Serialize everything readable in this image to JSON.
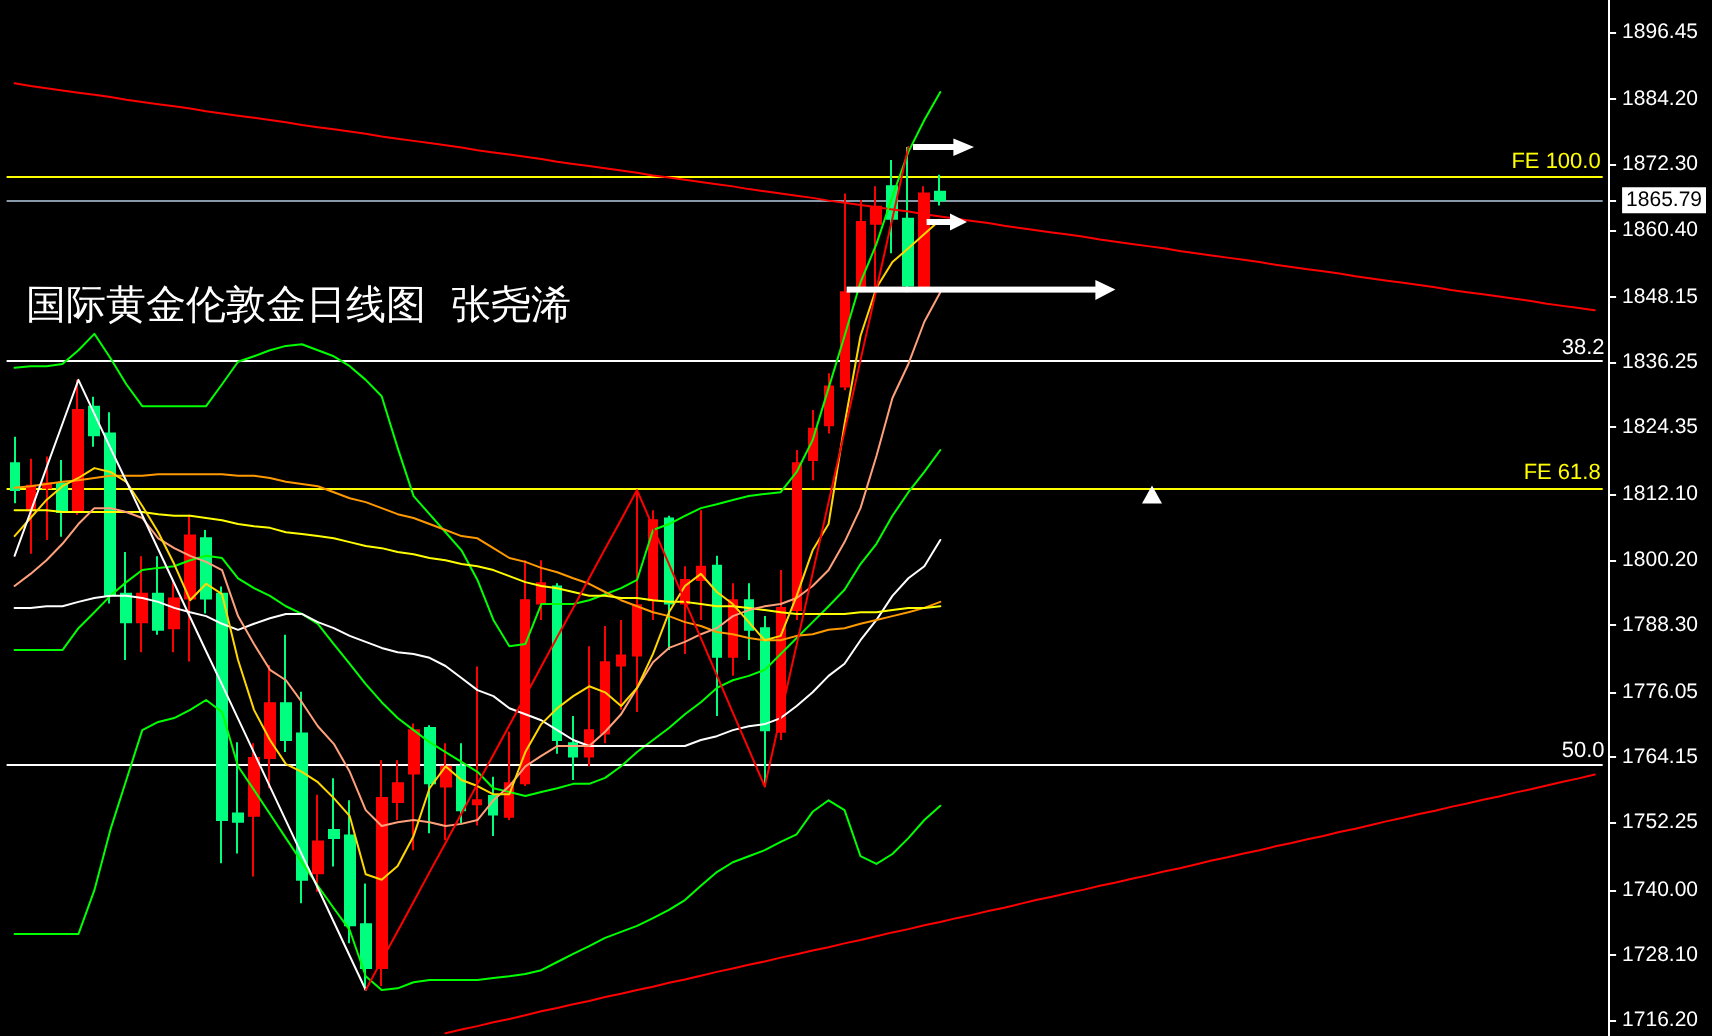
{
  "chart_data": {
    "type": "candlestick",
    "title": "国际黄金伦敦金日线图  张尧浠",
    "categories": [
      null,
      null,
      null,
      null,
      null,
      null,
      null,
      null,
      null,
      null,
      null,
      null,
      null,
      null,
      null,
      null,
      null,
      null,
      null,
      null,
      null,
      null,
      null,
      null,
      null,
      null,
      null,
      null,
      null,
      null,
      null,
      null,
      null,
      null,
      null,
      null,
      null,
      null,
      null,
      null,
      null,
      null,
      null,
      null,
      null,
      null,
      null,
      null,
      null,
      null,
      null,
      null,
      null,
      null,
      null,
      null,
      null,
      null,
      null,
      null,
      null,
      null,
      null,
      null,
      null,
      null,
      null,
      null,
      null,
      null,
      null,
      null,
      null,
      null,
      null,
      null,
      null,
      null,
      null,
      null,
      null,
      null,
      null,
      null,
      null,
      null,
      null,
      null,
      null,
      null,
      null,
      null,
      null,
      null,
      null,
      null,
      null,
      null,
      null,
      null
    ],
    "ohlc": [
      [
        1817.8,
        1822.6,
        1810.5,
        1812.9
      ],
      [
        1809.2,
        1818.6,
        1801.3,
        1813.7
      ],
      [
        1813.3,
        1819.0,
        1803.8,
        1814.1
      ],
      [
        1814.1,
        1818.4,
        1804.4,
        1808.9
      ],
      [
        1808.9,
        1833.0,
        1808.4,
        1827.5
      ],
      [
        1828.1,
        1829.9,
        1820.8,
        1822.9
      ],
      [
        1823.2,
        1827.1,
        1792.2,
        1793.7
      ],
      [
        1794.0,
        1801.6,
        1781.9,
        1788.8
      ],
      [
        1788.8,
        1800.8,
        1783.3,
        1794.0
      ],
      [
        1794.0,
        1800.8,
        1786.5,
        1787.4
      ],
      [
        1787.7,
        1796.5,
        1783.3,
        1793.1
      ],
      [
        1793.1,
        1808.4,
        1781.6,
        1804.6
      ],
      [
        1804.1,
        1805.6,
        1790.4,
        1793.1
      ],
      [
        1794.0,
        1795.3,
        1744.8,
        1752.7
      ],
      [
        1753.9,
        1766.9,
        1746.6,
        1752.4
      ],
      [
        1753.5,
        1766.7,
        1742.4,
        1764.0
      ],
      [
        1764.0,
        1781.0,
        1758.5,
        1774.0
      ],
      [
        1774.0,
        1786.5,
        1765.1,
        1767.3
      ],
      [
        1768.5,
        1776.1,
        1737.5,
        1741.8
      ],
      [
        1743.0,
        1757.3,
        1739.6,
        1748.8
      ],
      [
        1750.9,
        1760.3,
        1744.2,
        1749.4
      ],
      [
        1749.9,
        1756.3,
        1730.2,
        1733.5
      ],
      [
        1733.7,
        1741.1,
        1721.7,
        1725.7
      ],
      [
        1725.7,
        1763.6,
        1722.4,
        1756.7
      ],
      [
        1756.0,
        1763.6,
        1752.7,
        1759.4
      ],
      [
        1761.2,
        1770.3,
        1747.2,
        1769.1
      ],
      [
        1769.5,
        1770.0,
        1750.3,
        1759.4
      ],
      [
        1758.8,
        1766.7,
        1749.0,
        1762.4
      ],
      [
        1762.4,
        1766.7,
        1752.1,
        1754.5
      ],
      [
        1755.6,
        1780.7,
        1751.7,
        1756.3
      ],
      [
        1757.1,
        1760.6,
        1749.8,
        1753.7
      ],
      [
        1753.3,
        1768.8,
        1752.7,
        1759.4
      ],
      [
        1759.4,
        1800.1,
        1758.9,
        1792.8
      ],
      [
        1792.2,
        1800.1,
        1789.2,
        1795.9
      ],
      [
        1795.3,
        1795.9,
        1764.8,
        1767.3
      ],
      [
        1766.7,
        1771.7,
        1760.0,
        1764.3
      ],
      [
        1764.3,
        1784.4,
        1762.5,
        1769.1
      ],
      [
        1768.5,
        1788.1,
        1766.7,
        1781.5
      ],
      [
        1780.9,
        1789.2,
        1772.8,
        1782.7
      ],
      [
        1782.7,
        1812.9,
        1772.4,
        1791.9
      ],
      [
        1792.8,
        1809.2,
        1789.2,
        1807.4
      ],
      [
        1807.7,
        1808.2,
        1783.7,
        1792.2
      ],
      [
        1792.2,
        1799.0,
        1783.0,
        1796.5
      ],
      [
        1796.5,
        1809.2,
        1789.2,
        1798.9
      ],
      [
        1799.1,
        1800.9,
        1771.7,
        1782.5
      ],
      [
        1782.5,
        1795.9,
        1779.0,
        1792.8
      ],
      [
        1792.8,
        1795.9,
        1781.9,
        1787.4
      ],
      [
        1787.7,
        1789.9,
        1758.8,
        1769.1
      ],
      [
        1768.8,
        1798.3,
        1767.3,
        1791.4
      ],
      [
        1791.0,
        1820.2,
        1789.2,
        1817.8
      ],
      [
        1818.4,
        1827.5,
        1814.7,
        1824.1
      ],
      [
        1824.7,
        1834.2,
        1823.2,
        1831.8
      ],
      [
        1831.8,
        1867.0,
        1831.1,
        1849.0
      ],
      [
        1849.4,
        1865.8,
        1849.0,
        1861.8
      ],
      [
        1861.5,
        1868.3,
        1850.0,
        1864.6
      ],
      [
        1868.3,
        1873.1,
        1856.1,
        1862.4
      ],
      [
        1862.4,
        1875.5,
        1849.0,
        1850.2
      ],
      [
        1850.0,
        1868.3,
        1849.4,
        1867.0
      ],
      [
        1867.3,
        1870.4,
        1864.8,
        1865.79
      ],
      null,
      null,
      null,
      null,
      null,
      null,
      null,
      null,
      null,
      null,
      null,
      null,
      null,
      null,
      null,
      null,
      null,
      null,
      null,
      null,
      null,
      null,
      null,
      null,
      null,
      null,
      null,
      null,
      null,
      null,
      null,
      null,
      null,
      null,
      null,
      null,
      null,
      null,
      null,
      null,
      null
    ],
    "colors": [
      "#00ff7f",
      "#ff0000",
      "#ff0000",
      "#00ff7f",
      "#ff0000",
      "#00ff7f",
      "#00ff7f",
      "#00ff7f",
      "#ff0000",
      "#00ff7f",
      "#ff0000",
      "#ff0000",
      "#00ff7f",
      "#00ff7f",
      "#00ff7f",
      "#ff0000",
      "#ff0000",
      "#00ff7f",
      "#00ff7f",
      "#ff0000",
      "#00ff7f",
      "#00ff7f",
      "#00ff7f",
      "#ff0000",
      "#ff0000",
      "#ff0000",
      "#00ff7f",
      "#ff0000",
      "#00ff7f",
      "#ff0000",
      "#00ff7f",
      "#ff0000",
      "#ff0000",
      "#ff0000",
      "#00ff7f",
      "#00ff7f",
      "#ff0000",
      "#ff0000",
      "#ff0000",
      "#ff0000",
      "#ff0000",
      "#00ff7f",
      "#ff0000",
      "#ff0000",
      "#00ff7f",
      "#ff0000",
      "#00ff7f",
      "#00ff7f",
      "#ff0000",
      "#ff0000",
      "#ff0000",
      "#ff0000",
      "#ff0000",
      "#ff0000",
      "#ff0000",
      "#00ff7f",
      "#00ff7f",
      "#ff0000",
      "#00ff7f",
      null,
      null,
      null,
      null,
      null,
      null,
      null,
      null,
      null,
      null,
      null,
      null,
      null,
      null,
      null,
      null,
      null,
      null,
      null,
      null,
      null,
      null,
      null,
      null,
      null,
      null,
      null,
      null,
      null,
      null,
      null,
      null,
      null,
      null,
      null,
      null,
      null,
      null,
      null,
      null,
      null
    ],
    "series": [
      {
        "type": "line",
        "color": "#ff0000",
        "values": [
          1887.1,
          1886.6,
          1886.2,
          1885.8,
          1885.4,
          1885.0,
          1884.6,
          1884.1,
          1883.7,
          1883.3,
          1882.9,
          1882.5,
          1882.0,
          1881.6,
          1881.2,
          1880.8,
          1880.4,
          1880.0,
          1879.5,
          1879.1,
          1878.7,
          1878.3,
          1877.9,
          1877.4,
          1877.0,
          1876.6,
          1876.2,
          1875.8,
          1875.4,
          1874.9,
          1874.5,
          1874.1,
          1873.7,
          1873.3,
          1872.8,
          1872.4,
          1872.0,
          1871.6,
          1871.2,
          1870.8,
          1870.3,
          1869.9,
          1869.5,
          1869.1,
          1868.7,
          1868.3,
          1867.8,
          1867.4,
          1867.0,
          1866.6,
          1866.2,
          1865.7,
          1865.3,
          1864.9,
          1864.5,
          1864.1,
          1863.7,
          1863.2,
          1862.8,
          1862.4,
          1862.0,
          1861.6,
          1861.1,
          1860.7,
          1860.3,
          1859.9,
          1859.5,
          1859.1,
          1858.6,
          1858.2,
          1857.8,
          1857.4,
          1857.0,
          1856.5,
          1856.1,
          1855.7,
          1855.3,
          1854.9,
          1854.5,
          1854.0,
          1853.6,
          1853.2,
          1852.8,
          1852.4,
          1851.9,
          1851.5,
          1851.1,
          1850.7,
          1850.3,
          1849.9,
          1849.4,
          1849.0,
          1848.6,
          1848.2,
          1847.8,
          1847.4,
          1846.9,
          1846.5,
          1846.1,
          1845.7
        ]
      },
      {
        "type": "line",
        "color": "#ff0000",
        "values": [
          null,
          null,
          null,
          null,
          null,
          null,
          null,
          null,
          null,
          null,
          null,
          null,
          null,
          null,
          null,
          null,
          null,
          null,
          null,
          null,
          null,
          null,
          null,
          null,
          null,
          null,
          null,
          1713.8,
          1714.5,
          1715.1,
          1715.8,
          1716.4,
          1717.1,
          1717.8,
          1718.4,
          1719.1,
          1719.7,
          1720.4,
          1721.0,
          1721.7,
          1722.3,
          1723.0,
          1723.6,
          1724.3,
          1725.0,
          1725.6,
          1726.3,
          1726.9,
          1727.6,
          1728.2,
          1728.9,
          1729.5,
          1730.2,
          1730.8,
          1731.5,
          1732.2,
          1732.8,
          1733.5,
          1734.1,
          1734.8,
          1735.4,
          1736.1,
          1736.7,
          1737.4,
          1738.1,
          1738.7,
          1739.4,
          1740.0,
          1740.7,
          1741.3,
          1742.0,
          1742.6,
          1743.3,
          1743.9,
          1744.6,
          1745.3,
          1745.9,
          1746.6,
          1747.2,
          1747.9,
          1748.5,
          1749.2,
          1749.8,
          1750.5,
          1751.1,
          1751.8,
          1752.5,
          1753.1,
          1753.8,
          1754.4,
          1755.1,
          1755.7,
          1756.4,
          1757.0,
          1757.7,
          1758.3,
          1759.0,
          1759.7,
          1760.3,
          1761.0
        ]
      },
      {
        "type": "line",
        "color": "#00ff00",
        "values": [
          1835.2,
          1835.5,
          1835.5,
          1835.9,
          1838.4,
          1841.4,
          1837.0,
          1832.2,
          1828.2,
          1828.2,
          1828.2,
          1828.2,
          1828.2,
          1832.2,
          1836.3,
          1837.3,
          1838.4,
          1839.2,
          1839.5,
          1838.4,
          1837.3,
          1835.5,
          1833.0,
          1830.0,
          1820.6,
          1811.8,
          1808.5,
          1805.2,
          1801.9,
          1796.5,
          1789.2,
          1784.4,
          1784.8,
          1792.1,
          1792.1,
          1792.1,
          1792.8,
          1793.9,
          1795.0,
          1796.5,
          1805.6,
          1806.7,
          1808.2,
          1809.6,
          1810.3,
          1811.1,
          1811.8,
          1812.2,
          1812.5,
          1816.2,
          1822.0,
          1831.5,
          1841.0,
          1850.8,
          1857.8,
          1866.5,
          1874.6,
          1880.4,
          1885.5,
          null,
          null,
          null,
          null,
          null,
          null,
          null,
          null,
          null,
          null,
          null,
          null,
          null,
          null,
          null,
          null,
          null,
          null,
          null,
          null,
          null,
          null,
          null,
          null,
          null,
          null,
          null,
          null,
          null,
          null,
          null,
          null,
          null,
          null,
          null,
          null,
          null,
          null,
          null,
          null,
          null
        ]
      },
      {
        "type": "line",
        "color": "#00ff00",
        "values": [
          1783.7,
          1783.7,
          1783.7,
          1783.7,
          1787.7,
          1790.6,
          1793.6,
          1796.1,
          1798.3,
          1798.7,
          1799.0,
          1800.1,
          1800.9,
          1800.5,
          1796.8,
          1795.0,
          1793.6,
          1791.7,
          1790.3,
          1788.5,
          1784.8,
          1781.2,
          1777.5,
          1774.2,
          1771.3,
          1769.1,
          1766.9,
          1765.1,
          1763.3,
          1761.5,
          1758.5,
          1757.8,
          1757.1,
          1757.8,
          1758.5,
          1759.3,
          1759.3,
          1760.4,
          1762.5,
          1765.1,
          1767.3,
          1769.5,
          1772.0,
          1774.2,
          1776.8,
          1778.2,
          1779.0,
          1780.1,
          1783.0,
          1785.9,
          1788.8,
          1791.7,
          1794.7,
          1799.4,
          1803.1,
          1808.2,
          1812.5,
          1816.2,
          1820.2,
          null,
          null,
          null,
          null,
          null,
          null,
          null,
          null,
          null,
          null,
          null,
          null,
          null,
          null,
          null,
          null,
          null,
          null,
          null,
          null,
          null,
          null,
          null,
          null,
          null,
          null,
          null,
          null,
          null,
          null,
          null,
          null,
          null,
          null,
          null,
          null,
          null,
          null,
          null,
          null,
          null
        ]
      },
      {
        "type": "line",
        "color": "#00ff00",
        "values": [
          1731.9,
          1731.9,
          1731.9,
          1731.9,
          1731.9,
          1739.9,
          1750.9,
          1760.0,
          1769.1,
          1770.6,
          1771.3,
          1772.8,
          1774.6,
          1772.4,
          1762.5,
          1758.2,
          1753.8,
          1749.4,
          1745.0,
          1740.7,
          1736.6,
          1732.6,
          1724.2,
          1721.7,
          1722.0,
          1723.1,
          1723.5,
          1723.5,
          1723.5,
          1723.5,
          1723.9,
          1724.2,
          1724.6,
          1725.3,
          1726.8,
          1728.3,
          1729.7,
          1731.2,
          1732.3,
          1733.4,
          1734.8,
          1736.3,
          1738.1,
          1740.7,
          1743.2,
          1745.0,
          1746.1,
          1747.2,
          1748.7,
          1750.1,
          1754.2,
          1756.3,
          1754.5,
          1746.1,
          1744.7,
          1746.5,
          1749.4,
          1752.7,
          1755.3,
          null,
          null,
          null,
          null,
          null,
          null,
          null,
          null,
          null,
          null,
          null,
          null,
          null,
          null,
          null,
          null,
          null,
          null,
          null,
          null,
          null,
          null,
          null,
          null,
          null,
          null,
          null,
          null,
          null,
          null,
          null,
          null,
          null,
          null,
          null,
          null,
          null,
          null,
          null,
          null,
          null
        ]
      },
      {
        "type": "line",
        "color": "#ffffff",
        "values": [
          1791.4,
          1791.4,
          1791.7,
          1791.7,
          1792.5,
          1793.2,
          1793.6,
          1793.6,
          1793.2,
          1792.5,
          1791.4,
          1790.6,
          1789.9,
          1788.5,
          1787.4,
          1788.5,
          1789.5,
          1790.3,
          1790.3,
          1788.8,
          1787.7,
          1786.3,
          1785.2,
          1784.1,
          1783.3,
          1783.0,
          1782.3,
          1780.8,
          1778.6,
          1776.4,
          1775.3,
          1773.1,
          1772.0,
          1770.9,
          1769.1,
          1767.3,
          1766.2,
          1766.2,
          1766.2,
          1766.2,
          1766.2,
          1766.2,
          1766.2,
          1767.3,
          1768.0,
          1769.1,
          1769.8,
          1770.2,
          1771.3,
          1773.5,
          1776.0,
          1779.0,
          1781.2,
          1785.5,
          1789.2,
          1793.6,
          1796.8,
          1799.0,
          1803.8,
          null,
          null,
          null,
          null,
          null,
          null,
          null,
          null,
          null,
          null,
          null,
          null,
          null,
          null,
          null,
          null,
          null,
          null,
          null,
          null,
          null,
          null,
          null,
          null,
          null,
          null,
          null,
          null,
          null,
          null,
          null,
          null,
          null,
          null,
          null,
          null,
          null,
          null,
          null,
          null,
          null
        ]
      },
      {
        "type": "line",
        "color": "#ff9900",
        "values": [
          1813.3,
          1813.6,
          1814.0,
          1814.4,
          1814.7,
          1815.1,
          1815.5,
          1815.5,
          1815.5,
          1815.8,
          1815.8,
          1815.8,
          1815.8,
          1815.8,
          1815.5,
          1815.5,
          1815.1,
          1814.4,
          1814.0,
          1813.6,
          1812.5,
          1811.4,
          1810.7,
          1809.6,
          1808.5,
          1807.8,
          1806.7,
          1805.6,
          1804.5,
          1804.1,
          1802.3,
          1800.5,
          1799.8,
          1798.7,
          1797.9,
          1796.8,
          1795.8,
          1794.3,
          1792.8,
          1791.7,
          1790.6,
          1789.9,
          1788.8,
          1788.1,
          1787.0,
          1786.6,
          1785.9,
          1785.5,
          1785.5,
          1786.3,
          1786.6,
          1787.4,
          1787.7,
          1788.5,
          1789.2,
          1789.9,
          1790.6,
          1791.4,
          1792.5,
          null,
          null,
          null,
          null,
          null,
          null,
          null,
          null,
          null,
          null,
          null,
          null,
          null,
          null,
          null,
          null,
          null,
          null,
          null,
          null,
          null,
          null,
          null,
          null,
          null,
          null,
          null,
          null,
          null,
          null,
          null,
          null,
          null,
          null,
          null,
          null,
          null,
          null,
          null,
          null,
          null
        ]
      },
      {
        "type": "line",
        "color": "#ffff00",
        "values": [
          1809.2,
          1809.2,
          1809.2,
          1808.9,
          1808.9,
          1808.9,
          1808.9,
          1808.9,
          1808.9,
          1808.5,
          1808.2,
          1808.2,
          1807.8,
          1807.4,
          1806.7,
          1806.3,
          1806.0,
          1805.2,
          1804.9,
          1804.5,
          1804.1,
          1803.4,
          1802.7,
          1802.3,
          1801.6,
          1801.2,
          1800.5,
          1800.1,
          1799.4,
          1799.0,
          1798.3,
          1797.2,
          1796.1,
          1795.4,
          1795.0,
          1794.3,
          1793.6,
          1793.6,
          1793.2,
          1793.2,
          1792.8,
          1792.5,
          1792.5,
          1792.1,
          1791.7,
          1791.7,
          1791.4,
          1791.0,
          1790.6,
          1790.3,
          1790.3,
          1790.3,
          1790.3,
          1790.6,
          1790.6,
          1791.0,
          1791.4,
          1791.4,
          1791.7,
          null,
          null,
          null,
          null,
          null,
          null,
          null,
          null,
          null,
          null,
          null,
          null,
          null,
          null,
          null,
          null,
          null,
          null,
          null,
          null,
          null,
          null,
          null,
          null,
          null,
          null,
          null,
          null,
          null,
          null,
          null,
          null,
          null,
          null,
          null,
          null,
          null,
          null,
          null,
          null,
          null
        ]
      },
      {
        "type": "line",
        "color": "#ffa07a",
        "values": [
          1795.4,
          1797.6,
          1800.1,
          1803.1,
          1806.7,
          1809.6,
          1809.6,
          1808.9,
          1807.8,
          1804.1,
          1802.3,
          1800.9,
          1799.8,
          1798.3,
          1789.9,
          1784.8,
          1780.1,
          1778.2,
          1774.2,
          1769.8,
          1766.6,
          1761.5,
          1754.5,
          1751.6,
          1752.3,
          1752.7,
          1752.3,
          1751.6,
          1752.0,
          1752.7,
          1756.3,
          1758.9,
          1762.5,
          1764.4,
          1766.2,
          1766.2,
          1766.2,
          1768.8,
          1772.0,
          1776.8,
          1781.5,
          1784.1,
          1785.2,
          1786.6,
          1787.7,
          1789.9,
          1791.0,
          1791.7,
          1792.1,
          1793.2,
          1795.4,
          1798.3,
          1803.4,
          1809.6,
          1819.1,
          1829.7,
          1835.9,
          1843.6,
          1849.0,
          null,
          null,
          null,
          null,
          null,
          null,
          null,
          null,
          null,
          null,
          null,
          null,
          null,
          null,
          null,
          null,
          null,
          null,
          null,
          null,
          null,
          null,
          null,
          null,
          null,
          null,
          null,
          null,
          null,
          null,
          null,
          null,
          null,
          null,
          null,
          null,
          null,
          null,
          null,
          null,
          null
        ]
      },
      {
        "type": "line",
        "color": "#ffd700",
        "values": [
          1804.5,
          1807.8,
          1811.1,
          1813.6,
          1815.1,
          1816.9,
          1816.2,
          1814.4,
          1810.0,
          1805.2,
          1799.4,
          1792.8,
          1795.8,
          1793.9,
          1781.9,
          1772.8,
          1767.3,
          1762.9,
          1761.5,
          1759.6,
          1756.7,
          1753.4,
          1742.8,
          1741.8,
          1744.3,
          1749.8,
          1758.5,
          1762.5,
          1760.0,
          1758.9,
          1757.4,
          1757.4,
          1765.1,
          1770.2,
          1773.1,
          1775.3,
          1777.1,
          1776.0,
          1773.5,
          1776.8,
          1783.0,
          1790.6,
          1795.4,
          1797.6,
          1794.3,
          1792.1,
          1788.8,
          1785.5,
          1786.3,
          1793.6,
          1801.9,
          1806.7,
          1824.9,
          1841.0,
          1849.8,
          1854.5,
          1857.0,
          1859.6,
          1862.2,
          null,
          null,
          null,
          null,
          null,
          null,
          null,
          null,
          null,
          null,
          null,
          null,
          null,
          null,
          null,
          null,
          null,
          null,
          null,
          null,
          null,
          null,
          null,
          null,
          null,
          null,
          null,
          null,
          null,
          null,
          null,
          null,
          null,
          null,
          null,
          null,
          null,
          null,
          null,
          null,
          null
        ]
      },
      {
        "type": "line",
        "color": "#ffffff",
        "values": [
          1800.9,
          1808.9,
          1817.0,
          1825.0,
          1833.0,
          1826.8,
          1820.6,
          1814.5,
          1808.3,
          1802.1,
          1795.9,
          1789.7,
          1783.5,
          1777.4,
          1771.2,
          1765.0,
          1758.8,
          1752.6,
          1746.4,
          1740.3,
          1734.1,
          1727.9,
          1721.7,
          null,
          null,
          null,
          null,
          null,
          null,
          null,
          null,
          null,
          null,
          null,
          null,
          null,
          null,
          null,
          null,
          null,
          null,
          null,
          null,
          null,
          null,
          null,
          null,
          null,
          null,
          null,
          null,
          null,
          null,
          null,
          null,
          null,
          null,
          null,
          null,
          null,
          null,
          null,
          null,
          null,
          null,
          null,
          null,
          null,
          null,
          null,
          null,
          null,
          null,
          null,
          null,
          null,
          null,
          null,
          null,
          null,
          null,
          null,
          null,
          null,
          null,
          null,
          null,
          null,
          null,
          null,
          null,
          null,
          null,
          null,
          null,
          null,
          null,
          null,
          null,
          null
        ]
      },
      {
        "type": "line",
        "color": "#ff0000",
        "values": [
          null,
          null,
          null,
          null,
          null,
          null,
          null,
          null,
          null,
          null,
          null,
          null,
          null,
          null,
          null,
          null,
          null,
          null,
          null,
          null,
          null,
          null,
          1721.7,
          1727.1,
          1732.4,
          1737.8,
          1743.2,
          1748.5,
          1753.9,
          1759.3,
          1764.6,
          1770.0,
          1775.3,
          1780.7,
          1786.1,
          1791.4,
          1796.8,
          1802.2,
          1807.5,
          1812.9,
          1806.1,
          1799.4,
          1792.6,
          1785.9,
          1779.1,
          1772.3,
          1765.6,
          1758.8,
          1771.8,
          1784.7,
          1797.7,
          1810.7,
          1823.6,
          1836.6,
          1849.6,
          1862.5,
          1875.5,
          null,
          null,
          null,
          null,
          null,
          null,
          null,
          null,
          null,
          null,
          null,
          null,
          null,
          null,
          null,
          null,
          null,
          null,
          null,
          null,
          null,
          null,
          null,
          null,
          null,
          null,
          null,
          null,
          null,
          null,
          null,
          null,
          null,
          null,
          null,
          null,
          null,
          null,
          null,
          null,
          null,
          null,
          null
        ]
      }
    ],
    "ylim": [
      1713.3,
      1902.3
    ],
    "yticks": [
      1896.45,
      {
        "value": 1884.2,
        "label": "1884.20"
      },
      {
        "value": 1872.3,
        "label": "1872.30"
      },
      1865.79,
      {
        "value": 1860.4,
        "label": "1860.40"
      },
      1848.15,
      1836.25,
      1824.35,
      {
        "value": 1812.1,
        "label": "1812.10"
      },
      {
        "value": 1800.2,
        "label": "1800.20"
      },
      {
        "value": 1788.3,
        "label": "1788.30"
      },
      1776.05,
      1764.15,
      1752.25,
      {
        "value": 1740,
        "label": "1740.00"
      },
      {
        "value": 1728.1,
        "label": "1728.10"
      },
      {
        "value": 1716.2,
        "label": "1716.20"
      }
    ],
    "ref_lines": [
      {
        "axis": "y",
        "value": 1870.1,
        "label": "FE 100.0",
        "color": "#ffff00"
      },
      {
        "axis": "y",
        "value": 1865.79,
        "color": "#8899aa"
      },
      {
        "axis": "y",
        "value": 1836.5,
        "color": "#ffffff"
      },
      {
        "axis": "y",
        "value": 1813.2,
        "label": "FE 61.8",
        "color": "#ffff00"
      },
      {
        "axis": "y",
        "value": 1762.9,
        "color": "#ffffff"
      }
    ],
    "annotations": [
      {
        "text": "38.2",
        "y": 1836.5
      },
      {
        "text": "50.0",
        "y": 1762.9
      }
    ],
    "grid": false,
    "tick_labels": "y",
    "marker": "none"
  }
}
